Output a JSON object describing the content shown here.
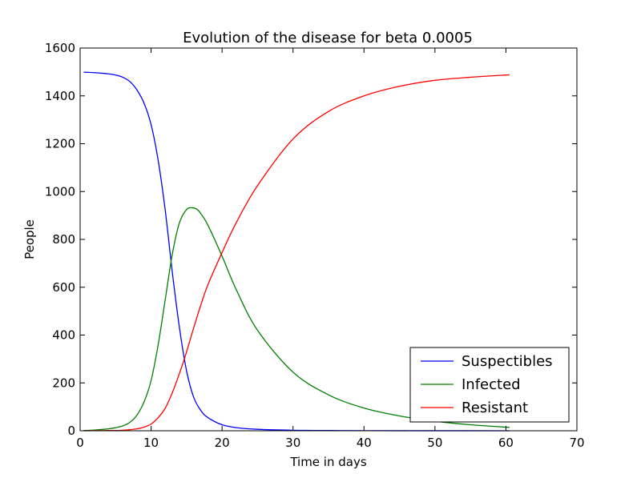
{
  "chart_data": {
    "type": "line",
    "title": "Evolution of the disease for beta 0.0005",
    "xlabel": "Time in days",
    "ylabel": "People",
    "xlim": [
      0,
      70
    ],
    "ylim": [
      0,
      1600
    ],
    "xticks": [
      0,
      10,
      20,
      30,
      40,
      50,
      60,
      70
    ],
    "yticks": [
      0,
      200,
      400,
      600,
      800,
      1000,
      1200,
      1400,
      1600
    ],
    "grid": false,
    "legend_position": "lower-right",
    "series": [
      {
        "name": "Suspectibles",
        "color": "#0000ff",
        "x": [
          0.5,
          2,
          4,
          5,
          6,
          7,
          8,
          9,
          10,
          11,
          12,
          13,
          14,
          15,
          16,
          17,
          18,
          20,
          22,
          25,
          30,
          35,
          40,
          50,
          60.5
        ],
        "y": [
          1499,
          1497,
          1492,
          1487,
          1478,
          1460,
          1425,
          1370,
          1280,
          1130,
          920,
          660,
          430,
          250,
          140,
          85,
          55,
          25,
          13,
          6,
          2,
          1,
          0.5,
          0.2,
          0.1
        ]
      },
      {
        "name": "Infected",
        "color": "#008000",
        "x": [
          0.5,
          2,
          4,
          5,
          6,
          7,
          8,
          9,
          10,
          11,
          12,
          13,
          14,
          15,
          15.8,
          16.5,
          17,
          18,
          20,
          22,
          25,
          30,
          35,
          40,
          45,
          50,
          55,
          60.5
        ],
        "y": [
          1,
          3,
          8,
          13,
          20,
          35,
          65,
          120,
          210,
          360,
          550,
          740,
          870,
          925,
          932,
          925,
          908,
          860,
          730,
          590,
          420,
          245,
          150,
          95,
          62,
          40,
          25,
          14
        ]
      },
      {
        "name": "Resistant",
        "color": "#ff0000",
        "x": [
          0.5,
          2,
          4,
          6,
          8,
          9,
          10,
          11,
          12,
          13,
          14,
          15,
          16,
          17,
          18,
          20,
          22,
          25,
          30,
          35,
          40,
          45,
          50,
          55,
          60.5
        ],
        "y": [
          0,
          0.5,
          1,
          2,
          8,
          15,
          28,
          55,
          95,
          160,
          240,
          330,
          430,
          525,
          610,
          745,
          870,
          1025,
          1220,
          1335,
          1400,
          1440,
          1465,
          1478,
          1488
        ]
      }
    ]
  }
}
